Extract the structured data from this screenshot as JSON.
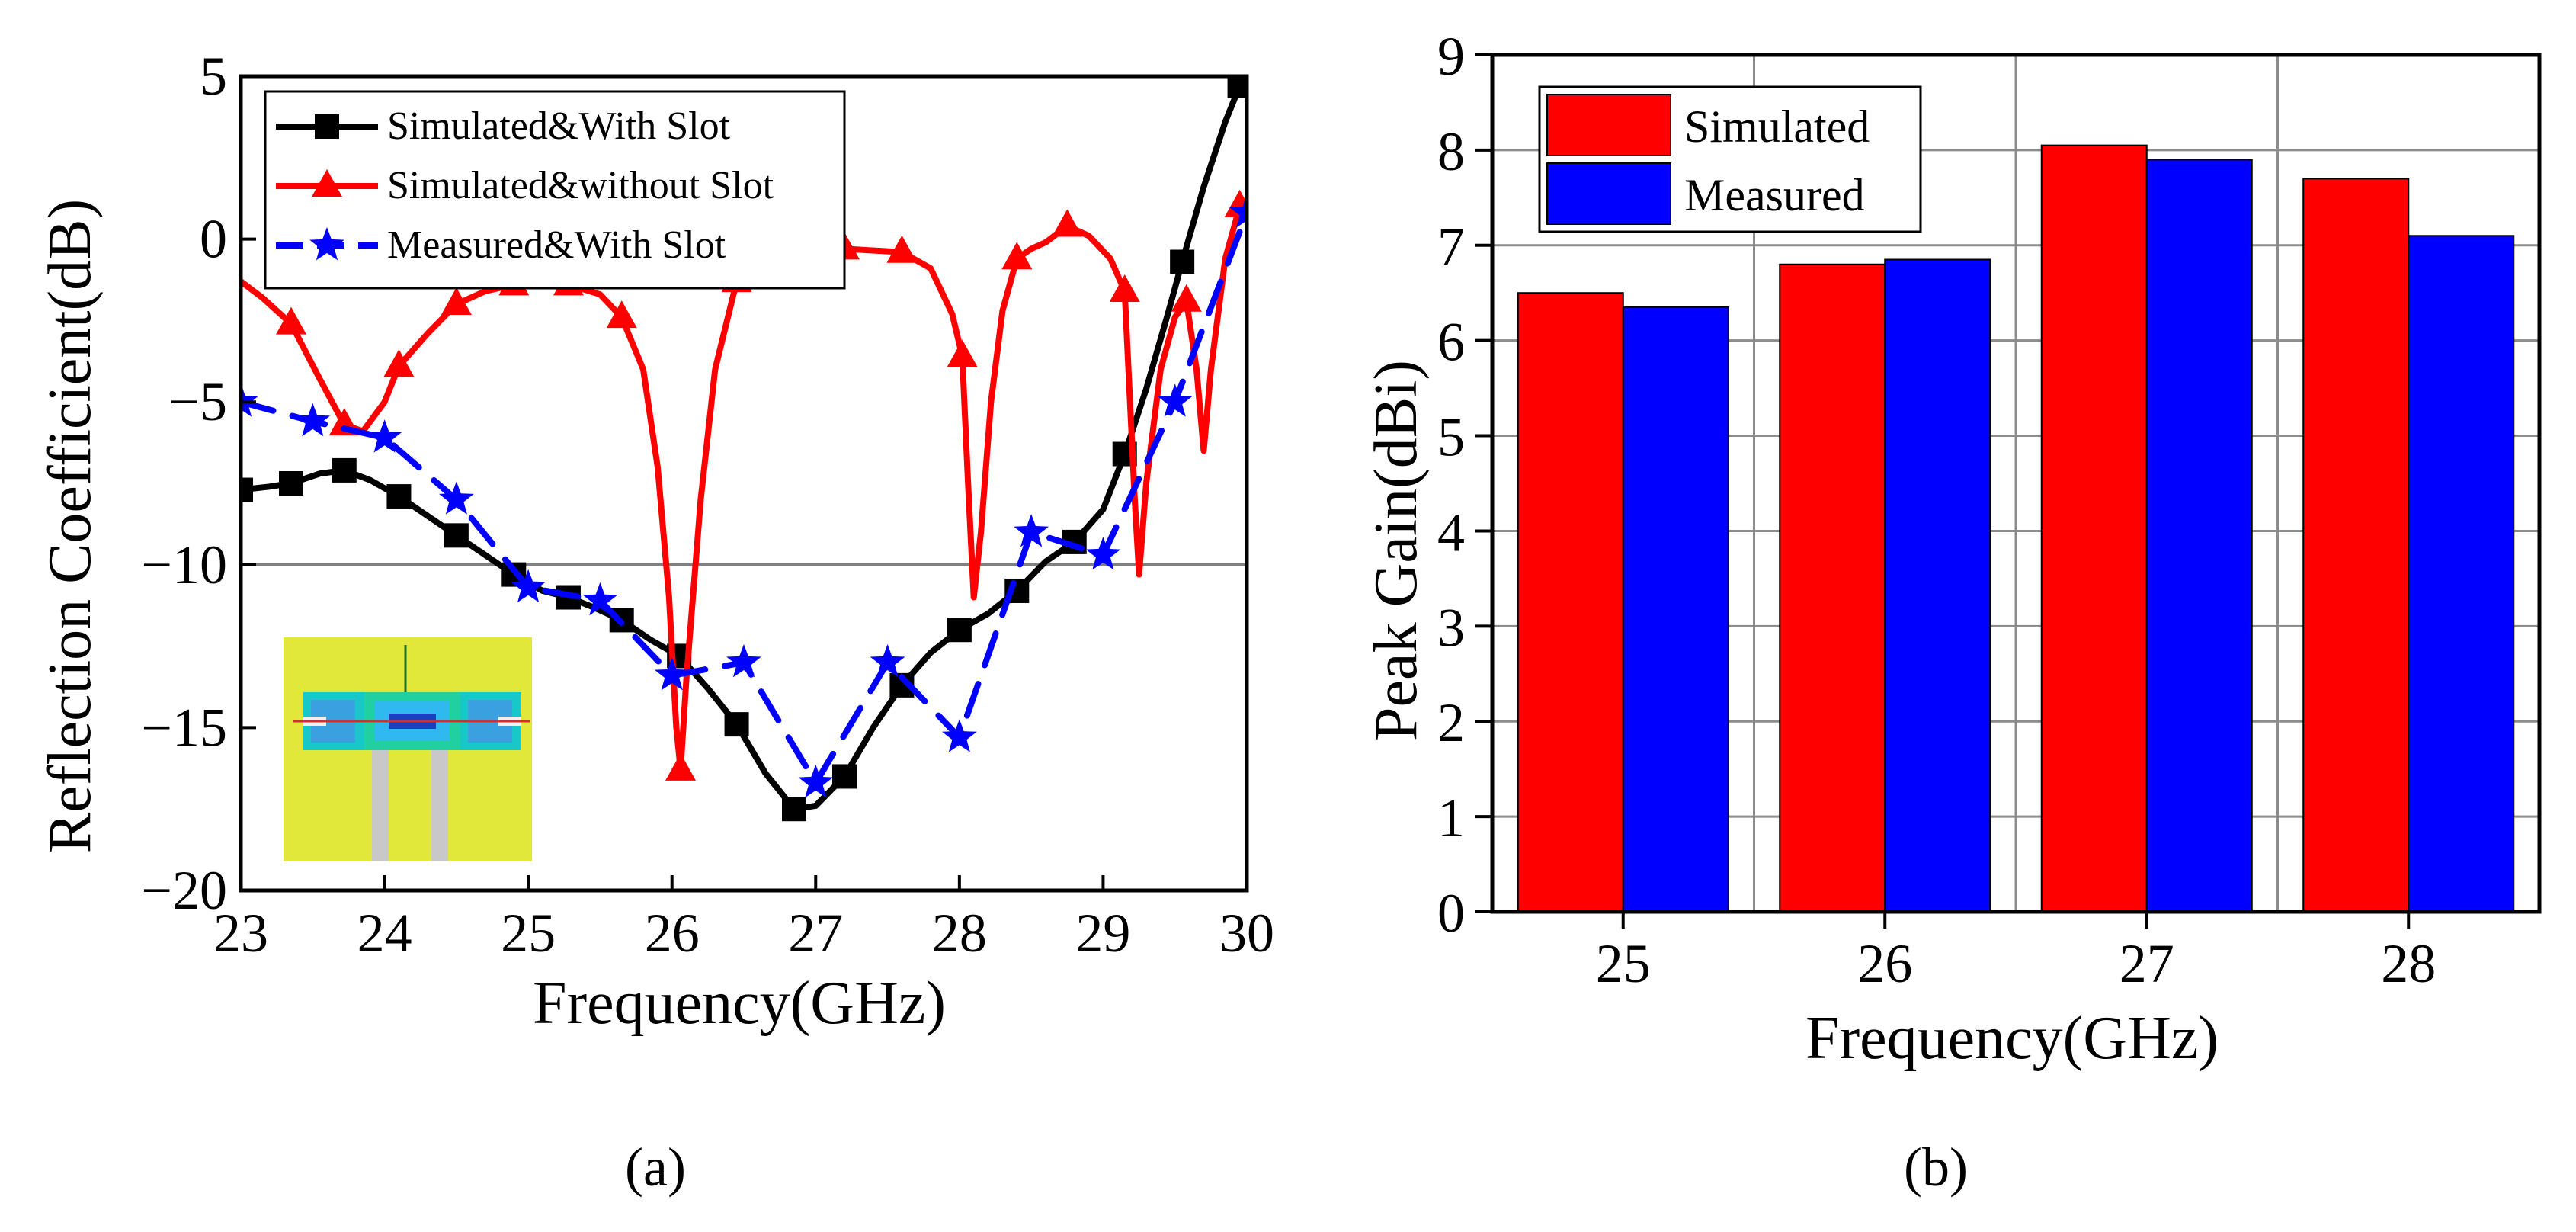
{
  "chart_data": [
    {
      "panel": "(a)",
      "type": "line",
      "xlabel": "Frequency(GHz)",
      "ylabel": "Reflection Coefficient(dB)",
      "xlim": [
        23,
        30
      ],
      "ylim": [
        -20,
        5
      ],
      "xticks": [
        23,
        24,
        25,
        26,
        27,
        28,
        29,
        30
      ],
      "yticks": [
        5,
        0,
        -5,
        -10,
        -15,
        -20
      ],
      "ytick_labels": [
        "5",
        "0",
        "−5",
        "−10",
        "−15",
        "−20"
      ],
      "reference_line": -10,
      "legend_position": "top-left",
      "series": [
        {
          "name": "Simulated&With Slot",
          "color": "#000000",
          "marker": "square",
          "dash": "solid",
          "points": [
            [
              23,
              -7.7
            ],
            [
              23.2,
              -7.6
            ],
            [
              23.35,
              -7.5
            ],
            [
              23.55,
              -7.2
            ],
            [
              23.72,
              -7.1
            ],
            [
              23.9,
              -7.4
            ],
            [
              24.1,
              -7.9
            ],
            [
              24.3,
              -8.5
            ],
            [
              24.5,
              -9.1
            ],
            [
              24.7,
              -9.7
            ],
            [
              24.9,
              -10.3
            ],
            [
              25.1,
              -10.8
            ],
            [
              25.28,
              -11.0
            ],
            [
              25.45,
              -11.3
            ],
            [
              25.65,
              -11.7
            ],
            [
              25.85,
              -12.3
            ],
            [
              26.05,
              -12.8
            ],
            [
              26.25,
              -13.8
            ],
            [
              26.45,
              -14.9
            ],
            [
              26.65,
              -16.4
            ],
            [
              26.85,
              -17.5
            ],
            [
              27.0,
              -17.4
            ],
            [
              27.2,
              -16.5
            ],
            [
              27.4,
              -15.0
            ],
            [
              27.6,
              -13.7
            ],
            [
              27.8,
              -12.7
            ],
            [
              28.0,
              -12.0
            ],
            [
              28.2,
              -11.5
            ],
            [
              28.4,
              -10.8
            ],
            [
              28.6,
              -9.9
            ],
            [
              28.8,
              -9.3
            ],
            [
              29.0,
              -8.3
            ],
            [
              29.15,
              -6.6
            ],
            [
              29.3,
              -4.6
            ],
            [
              29.45,
              -2.3
            ],
            [
              29.55,
              -0.7
            ],
            [
              29.7,
              1.6
            ],
            [
              29.85,
              3.6
            ],
            [
              29.95,
              4.7
            ]
          ],
          "marker_points": [
            [
              23,
              -7.7
            ],
            [
              23.35,
              -7.5
            ],
            [
              23.72,
              -7.1
            ],
            [
              24.1,
              -7.9
            ],
            [
              24.5,
              -9.1
            ],
            [
              24.9,
              -10.3
            ],
            [
              25.28,
              -11.0
            ],
            [
              25.65,
              -11.7
            ],
            [
              26.05,
              -12.8
            ],
            [
              26.45,
              -14.9
            ],
            [
              26.85,
              -17.5
            ],
            [
              27.2,
              -16.5
            ],
            [
              27.6,
              -13.7
            ],
            [
              28.0,
              -12.0
            ],
            [
              28.4,
              -10.8
            ],
            [
              28.8,
              -9.3
            ],
            [
              29.15,
              -6.6
            ],
            [
              29.55,
              -0.7
            ],
            [
              29.95,
              4.7
            ]
          ]
        },
        {
          "name": "Simulated&without Slot",
          "color": "#ff0000",
          "marker": "triangle",
          "dash": "solid",
          "points": [
            [
              23,
              -1.3
            ],
            [
              23.15,
              -1.8
            ],
            [
              23.35,
              -2.6
            ],
            [
              23.55,
              -4.3
            ],
            [
              23.72,
              -5.7
            ],
            [
              23.85,
              -5.9
            ],
            [
              24.0,
              -5.0
            ],
            [
              24.1,
              -3.9
            ],
            [
              24.3,
              -2.9
            ],
            [
              24.5,
              -2.0
            ],
            [
              24.7,
              -1.6
            ],
            [
              24.9,
              -1.4
            ],
            [
              25.28,
              -1.4
            ],
            [
              25.5,
              -1.7
            ],
            [
              25.65,
              -2.4
            ],
            [
              25.8,
              -4.0
            ],
            [
              25.9,
              -7.0
            ],
            [
              25.98,
              -11.0
            ],
            [
              26.03,
              -15.0
            ],
            [
              26.06,
              -16.3
            ],
            [
              26.1,
              -13.5
            ],
            [
              26.2,
              -8.0
            ],
            [
              26.3,
              -4.0
            ],
            [
              26.45,
              -1.3
            ],
            [
              26.6,
              -0.6
            ],
            [
              26.8,
              -0.3
            ],
            [
              27.2,
              -0.3
            ],
            [
              27.6,
              -0.4
            ],
            [
              27.8,
              -0.9
            ],
            [
              27.95,
              -2.3
            ],
            [
              28.02,
              -3.6
            ],
            [
              28.06,
              -7.5
            ],
            [
              28.1,
              -11.0
            ],
            [
              28.15,
              -9.0
            ],
            [
              28.22,
              -5.0
            ],
            [
              28.3,
              -2.2
            ],
            [
              28.4,
              -0.6
            ],
            [
              28.5,
              -0.3
            ],
            [
              28.6,
              -0.1
            ],
            [
              28.75,
              0.4
            ],
            [
              28.9,
              0.1
            ],
            [
              29.05,
              -0.6
            ],
            [
              29.15,
              -1.6
            ],
            [
              29.22,
              -8.0
            ],
            [
              29.25,
              -10.3
            ],
            [
              29.3,
              -7.5
            ],
            [
              29.4,
              -4.0
            ],
            [
              29.5,
              -2.4
            ],
            [
              29.58,
              -1.9
            ],
            [
              29.65,
              -4.0
            ],
            [
              29.7,
              -6.5
            ],
            [
              29.75,
              -4.0
            ],
            [
              29.85,
              -0.6
            ],
            [
              29.95,
              1.0
            ],
            [
              30,
              0.8
            ]
          ],
          "marker_points": [
            [
              23.35,
              -2.6
            ],
            [
              23.72,
              -5.7
            ],
            [
              24.1,
              -3.9
            ],
            [
              24.5,
              -2.0
            ],
            [
              24.9,
              -1.4
            ],
            [
              25.28,
              -1.4
            ],
            [
              25.65,
              -2.4
            ],
            [
              26.06,
              -16.3
            ],
            [
              26.45,
              -1.3
            ],
            [
              27.2,
              -0.3
            ],
            [
              27.6,
              -0.4
            ],
            [
              28.02,
              -3.6
            ],
            [
              28.4,
              -0.6
            ],
            [
              28.75,
              0.4
            ],
            [
              29.15,
              -1.6
            ],
            [
              29.58,
              -1.9
            ],
            [
              29.95,
              1.0
            ]
          ]
        },
        {
          "name": "Measured&With Slot",
          "color": "#0000ff",
          "marker": "star",
          "dash": "dashed",
          "points": [
            [
              23,
              -5.0
            ],
            [
              23.5,
              -5.6
            ],
            [
              24.0,
              -6.1
            ],
            [
              24.5,
              -8.0
            ],
            [
              25.0,
              -10.7
            ],
            [
              25.5,
              -11.1
            ],
            [
              26.0,
              -13.4
            ],
            [
              26.5,
              -13.0
            ],
            [
              27.0,
              -16.7
            ],
            [
              27.5,
              -13.0
            ],
            [
              28.0,
              -15.3
            ],
            [
              28.5,
              -9.0
            ],
            [
              29.0,
              -9.7
            ],
            [
              29.5,
              -5.0
            ],
            [
              30.0,
              0.8
            ]
          ],
          "marker_points": [
            [
              23,
              -5.0
            ],
            [
              23.5,
              -5.6
            ],
            [
              24.0,
              -6.1
            ],
            [
              24.5,
              -8.0
            ],
            [
              25.0,
              -10.7
            ],
            [
              25.5,
              -11.1
            ],
            [
              26.0,
              -13.4
            ],
            [
              26.5,
              -13.0
            ],
            [
              27.0,
              -16.7
            ],
            [
              27.5,
              -13.0
            ],
            [
              28.0,
              -15.3
            ],
            [
              28.5,
              -9.0
            ],
            [
              29.0,
              -9.7
            ],
            [
              29.5,
              -5.0
            ],
            [
              30.0,
              0.8
            ]
          ]
        }
      ]
    },
    {
      "panel": "(b)",
      "type": "bar",
      "xlabel": "Frequency(GHz)",
      "ylabel": "Peak Gain(dBi)",
      "categories": [
        "25",
        "26",
        "27",
        "28"
      ],
      "ylim": [
        0,
        9
      ],
      "yticks": [
        0,
        1,
        2,
        3,
        4,
        5,
        6,
        7,
        8,
        9
      ],
      "legend_position": "top-left",
      "series": [
        {
          "name": "Simulated",
          "color": "#ff0000",
          "values": [
            6.5,
            6.8,
            8.05,
            7.7
          ]
        },
        {
          "name": "Measured",
          "color": "#0000ff",
          "values": [
            6.35,
            6.85,
            7.9,
            7.1
          ]
        }
      ]
    }
  ]
}
